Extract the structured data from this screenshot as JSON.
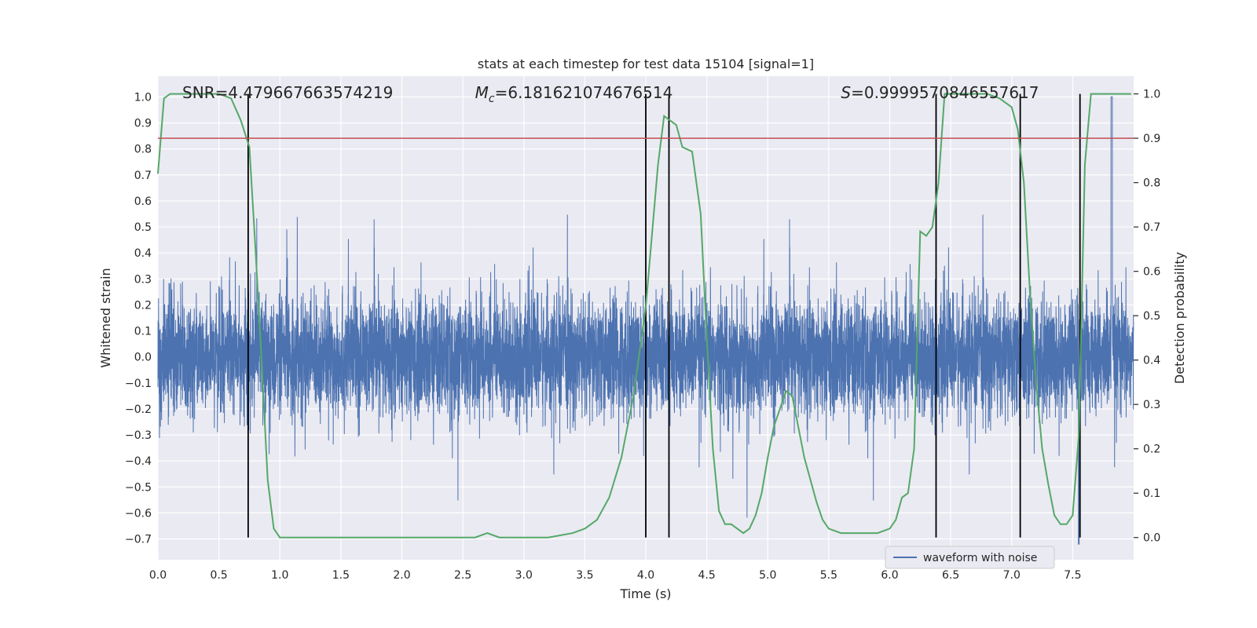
{
  "chart_data": {
    "type": "line",
    "title": "stats at each timestep for test data 15104 [signal=1]",
    "xlabel": "Time (s)",
    "ylabel_left": "Whitened strain",
    "ylabel_right": "Detection probability",
    "xlim": [
      0,
      8
    ],
    "ylim_left": [
      -0.78,
      1.08
    ],
    "ylim_right": [
      -0.05,
      1.04
    ],
    "x_ticks": [
      "0.0",
      "0.5",
      "1.0",
      "1.5",
      "2.0",
      "2.5",
      "3.0",
      "3.5",
      "4.0",
      "4.5",
      "5.0",
      "5.5",
      "6.0",
      "6.5",
      "7.0",
      "7.5"
    ],
    "x_tick_values": [
      0,
      0.5,
      1,
      1.5,
      2,
      2.5,
      3,
      3.5,
      4,
      4.5,
      5,
      5.5,
      6,
      6.5,
      7,
      7.5
    ],
    "y_left_ticks": [
      "1.0",
      "0.9",
      "0.8",
      "0.7",
      "0.6",
      "0.5",
      "0.4",
      "0.3",
      "0.2",
      "0.1",
      "0.0",
      "−0.1",
      "−0.2",
      "−0.3",
      "−0.4",
      "−0.5",
      "−0.6",
      "−0.7"
    ],
    "y_left_tick_values": [
      1.0,
      0.9,
      0.8,
      0.7,
      0.6,
      0.5,
      0.4,
      0.3,
      0.2,
      0.1,
      0.0,
      -0.1,
      -0.2,
      -0.3,
      -0.4,
      -0.5,
      -0.6,
      -0.7
    ],
    "y_right_ticks": [
      "1.0",
      "0.9",
      "0.8",
      "0.7",
      "0.6",
      "0.5",
      "0.4",
      "0.3",
      "0.2",
      "0.1",
      "0.0"
    ],
    "y_right_tick_values": [
      1.0,
      0.9,
      0.8,
      0.7,
      0.6,
      0.5,
      0.4,
      0.3,
      0.2,
      0.1,
      0.0
    ],
    "grid": true,
    "legend_position": "lower-right",
    "annotations": [
      {
        "label": "SNR=4.479667663574219",
        "x": 0.2,
        "y": 1.02
      },
      {
        "label": "M_c=6.181621074676514",
        "x": 2.6,
        "y": 1.02
      },
      {
        "label": "S=0.9999570846557617",
        "x": 5.6,
        "y": 1.02
      }
    ],
    "series": [
      {
        "name": "waveform with noise",
        "axis": "left",
        "color": "#4c72b0",
        "sample_rate_hz": 1024,
        "duration_s": 8,
        "envelope_typical": [
          -0.33,
          0.3
        ],
        "extreme_max": 1.0,
        "extreme_min": -0.72
      },
      {
        "axis": "right",
        "color": "#55a868",
        "x": [
          0.0,
          0.05,
          0.1,
          0.2,
          0.3,
          0.4,
          0.5,
          0.6,
          0.68,
          0.75,
          0.8,
          0.85,
          0.9,
          0.95,
          1.0,
          1.2,
          1.4,
          1.6,
          1.8,
          2.0,
          2.2,
          2.4,
          2.6,
          2.7,
          2.8,
          3.0,
          3.2,
          3.4,
          3.5,
          3.6,
          3.7,
          3.8,
          3.9,
          4.0,
          4.05,
          4.1,
          4.15,
          4.2,
          4.25,
          4.3,
          4.38,
          4.45,
          4.5,
          4.55,
          4.6,
          4.65,
          4.7,
          4.75,
          4.8,
          4.85,
          4.9,
          4.95,
          5.0,
          5.05,
          5.1,
          5.15,
          5.2,
          5.3,
          5.4,
          5.45,
          5.5,
          5.6,
          5.7,
          5.8,
          5.9,
          6.0,
          6.05,
          6.1,
          6.15,
          6.2,
          6.25,
          6.3,
          6.35,
          6.4,
          6.45,
          6.5,
          6.6,
          6.7,
          6.8,
          6.9,
          7.0,
          7.05,
          7.1,
          7.15,
          7.2,
          7.25,
          7.3,
          7.35,
          7.4,
          7.45,
          7.5,
          7.55,
          7.6,
          7.65,
          7.7,
          7.8,
          7.9,
          7.98
        ],
        "y": [
          0.82,
          0.99,
          1.0,
          1.0,
          1.0,
          1.0,
          1.0,
          0.99,
          0.94,
          0.88,
          0.65,
          0.4,
          0.13,
          0.02,
          0.0,
          0.0,
          0.0,
          0.0,
          0.0,
          0.0,
          0.0,
          0.0,
          0.0,
          0.01,
          0.0,
          0.0,
          0.0,
          0.01,
          0.02,
          0.04,
          0.09,
          0.18,
          0.32,
          0.52,
          0.68,
          0.84,
          0.95,
          0.94,
          0.93,
          0.88,
          0.87,
          0.73,
          0.45,
          0.2,
          0.06,
          0.03,
          0.03,
          0.02,
          0.01,
          0.02,
          0.05,
          0.1,
          0.18,
          0.25,
          0.29,
          0.33,
          0.32,
          0.18,
          0.08,
          0.04,
          0.02,
          0.01,
          0.01,
          0.01,
          0.01,
          0.02,
          0.04,
          0.09,
          0.1,
          0.2,
          0.69,
          0.68,
          0.7,
          0.8,
          1.0,
          1.0,
          1.0,
          1.0,
          1.0,
          0.99,
          0.97,
          0.92,
          0.8,
          0.55,
          0.35,
          0.2,
          0.12,
          0.05,
          0.03,
          0.03,
          0.05,
          0.23,
          0.84,
          1.0,
          1.0,
          1.0,
          1.0,
          1.0
        ]
      }
    ],
    "threshold": {
      "axis": "right",
      "value": 0.9,
      "color": "#c44e52"
    },
    "vertical_lines": [
      0.74,
      4.0,
      4.19,
      6.38,
      7.07,
      7.56
    ]
  }
}
